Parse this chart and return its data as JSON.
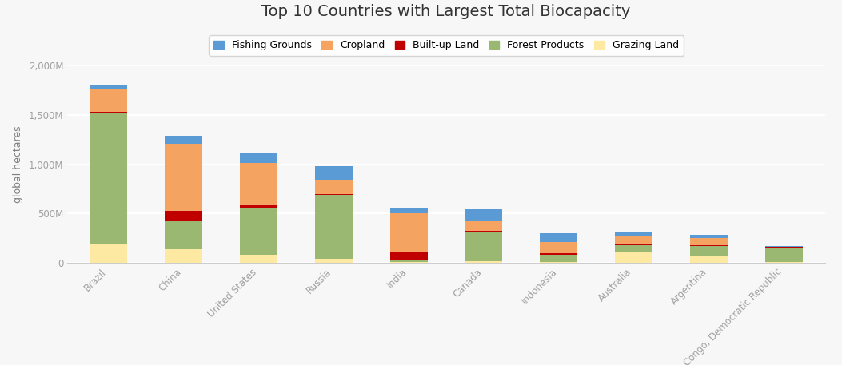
{
  "title": "Top 10 Countries with Largest Total Biocapacity",
  "ylabel": "global hectares",
  "categories": [
    "Brazil",
    "China",
    "United States",
    "Russia",
    "India",
    "Canada",
    "Indonesia",
    "Australia",
    "Argentina",
    "Congo, Democratic Republic"
  ],
  "series": {
    "Grazing Land": [
      185,
      140,
      80,
      40,
      5,
      15,
      10,
      110,
      75,
      5
    ],
    "Forest Products": [
      1330,
      285,
      480,
      650,
      30,
      305,
      75,
      70,
      95,
      150
    ],
    "Built-up Land": [
      20,
      100,
      20,
      10,
      75,
      5,
      10,
      10,
      10,
      5
    ],
    "Cropland": [
      220,
      680,
      430,
      140,
      390,
      100,
      120,
      85,
      70,
      5
    ],
    "Fishing Grounds": [
      55,
      80,
      100,
      145,
      55,
      115,
      85,
      30,
      30,
      5
    ]
  },
  "colors": {
    "Fishing Grounds": "#5b9bd5",
    "Cropland": "#f4a460",
    "Built-up Land": "#c00000",
    "Forest Products": "#9bb872",
    "Grazing Land": "#fde9a2"
  },
  "ylim": [
    0,
    2000
  ],
  "yticks": [
    0,
    500,
    1000,
    1500,
    2000
  ],
  "ytick_labels": [
    "0",
    "500M",
    "1,000M",
    "1,500M",
    "2,000M"
  ],
  "background_color": "#f7f7f7",
  "grid_color": "#ffffff",
  "title_fontsize": 14,
  "axis_label_color": "#7f7f7f",
  "tick_color": "#a0a0a0",
  "legend_order": [
    "Fishing Grounds",
    "Cropland",
    "Built-up Land",
    "Forest Products",
    "Grazing Land"
  ]
}
